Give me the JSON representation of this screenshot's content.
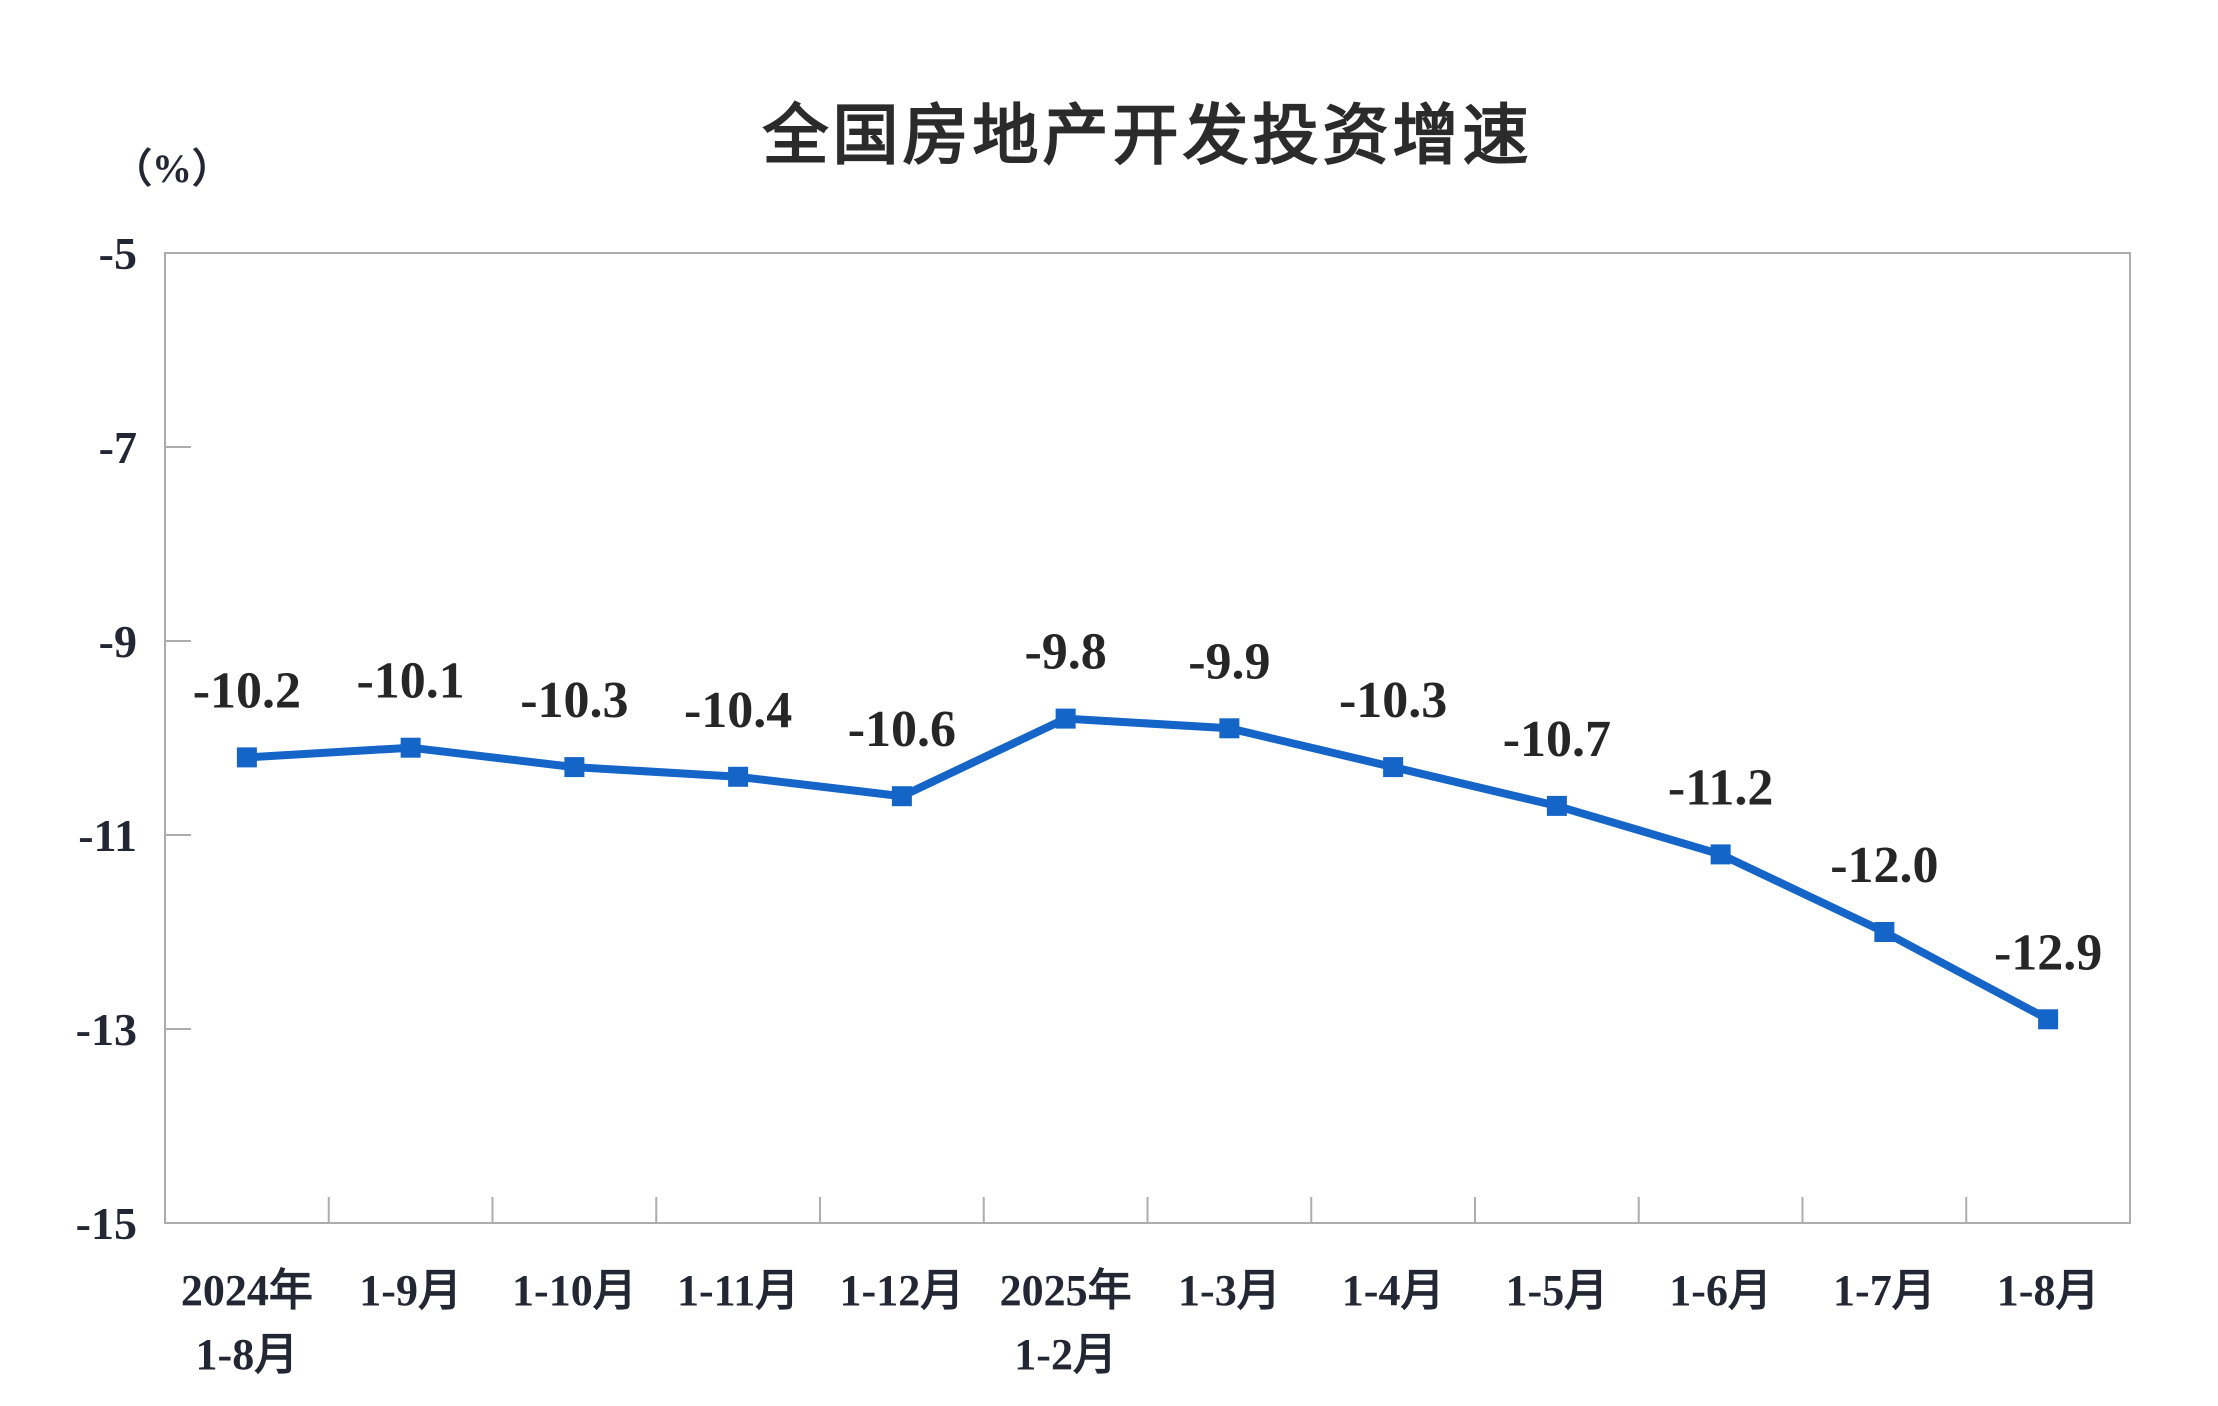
{
  "page": {
    "background": "#ffffff"
  },
  "chart_data": {
    "type": "line",
    "title": "全国房地产开发投资增速",
    "unit_label": "（%）",
    "categories": [
      "2024年\n1-8月",
      "1-9月",
      "1-10月",
      "1-11月",
      "1-12月",
      "2025年\n1-2月",
      "1-3月",
      "1-4月",
      "1-5月",
      "1-6月",
      "1-7月",
      "1-8月"
    ],
    "values": [
      -10.2,
      -10.1,
      -10.3,
      -10.4,
      -10.6,
      -9.8,
      -9.9,
      -10.3,
      -10.7,
      -11.2,
      -12.0,
      -12.9
    ],
    "data_labels": [
      "-10.2",
      "-10.1",
      "-10.3",
      "-10.4",
      "-10.6",
      "-9.8",
      "-9.9",
      "-10.3",
      "-10.7",
      "-11.2",
      "-12.0",
      "-12.9"
    ],
    "y_ticks": [
      -5,
      -7,
      -9,
      -11,
      -13,
      -15
    ],
    "y_tick_labels": [
      "-5",
      "-7",
      "-9",
      "-11",
      "-13",
      "-15"
    ],
    "ylim": [
      -15,
      -5
    ],
    "grid": false,
    "legend": "none",
    "xlabel": "",
    "ylabel": "（%）",
    "series_color": "#1565c8",
    "axis_color": "#adadad",
    "data_label_color": "#262626",
    "tick_label_color": "#232633"
  }
}
